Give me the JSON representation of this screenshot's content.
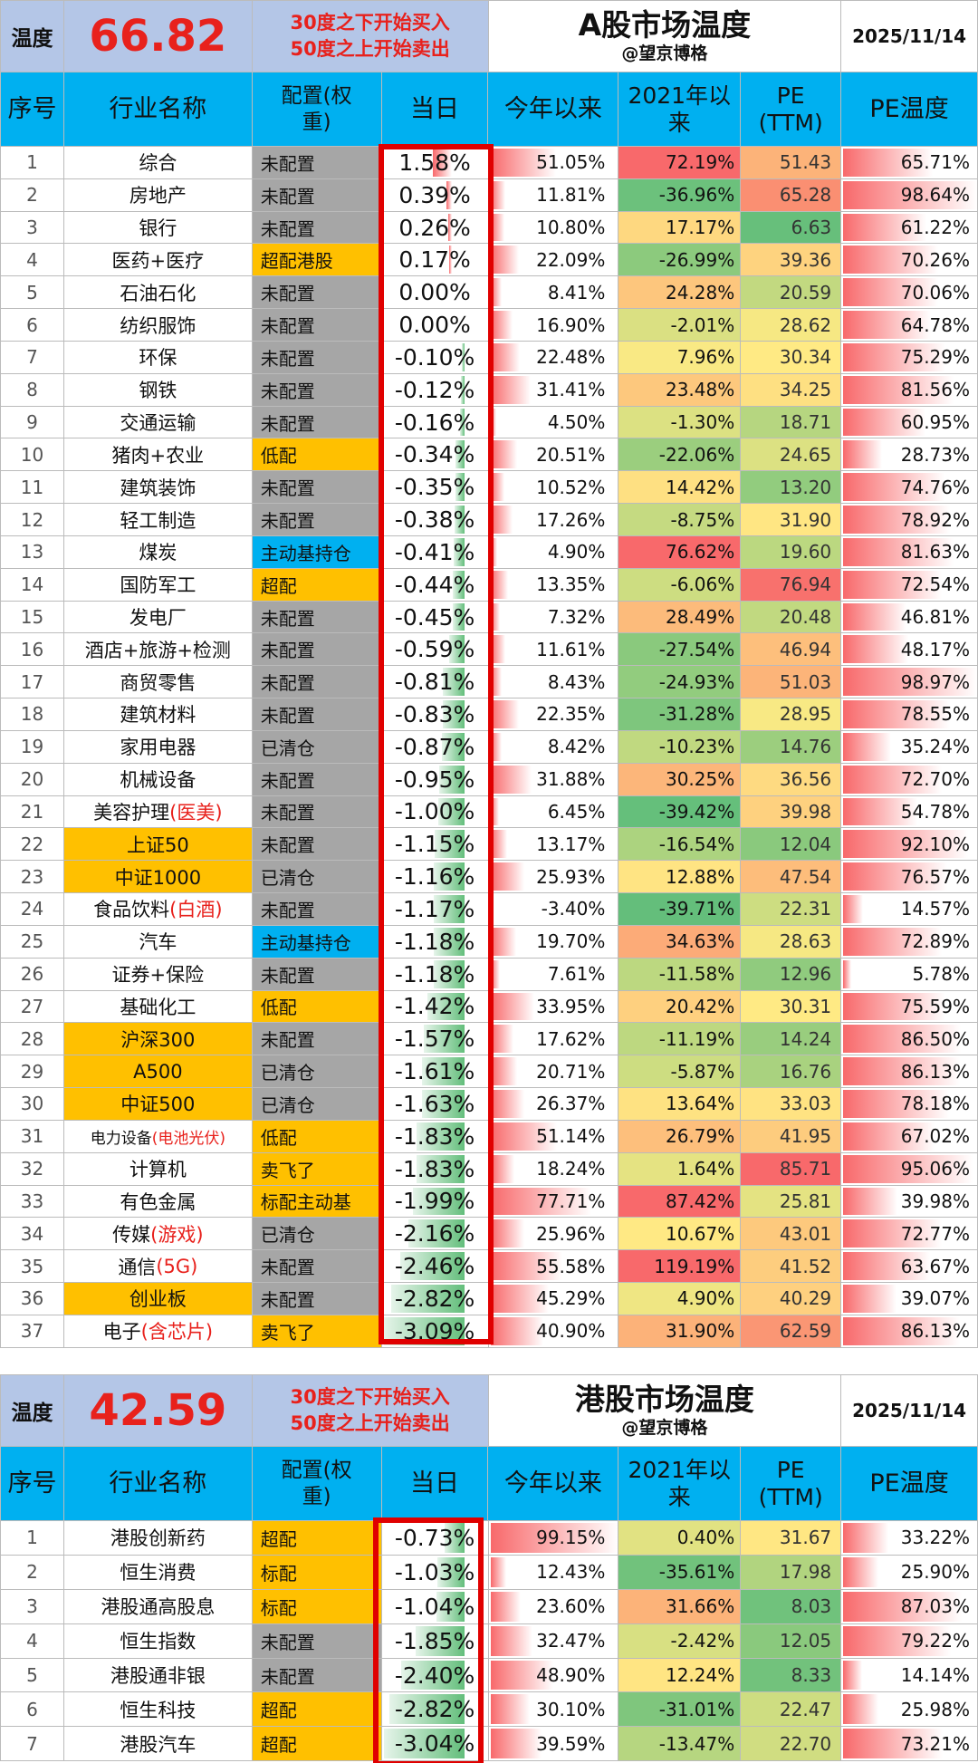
{
  "a_share": {
    "temp_label": "温度",
    "temp_value": "66.82",
    "rule_line1": "30度之下开始买入",
    "rule_line2": "50度之上开始卖出",
    "title": "A股市场温度",
    "author": "@望京博格",
    "date": "2025/11/14",
    "headers": {
      "no": "序号",
      "name": "行业名称",
      "alloc": "配置(权重)",
      "day": "当日",
      "ytd": "今年以来",
      "since": "2021年以来",
      "pe": "PE (TTM)",
      "pet": "PE温度"
    },
    "rows": [
      {
        "no": "1",
        "name": "综合",
        "alloc": "未配置",
        "day": "1.58%",
        "ytd": "51.05%",
        "since": "72.19%",
        "pe": "51.43",
        "pet": "65.71%"
      },
      {
        "no": "2",
        "name": "房地产",
        "alloc": "未配置",
        "day": "0.39%",
        "ytd": "11.81%",
        "since": "-36.96%",
        "pe": "65.28",
        "pet": "98.64%"
      },
      {
        "no": "3",
        "name": "银行",
        "alloc": "未配置",
        "day": "0.26%",
        "ytd": "10.80%",
        "since": "17.17%",
        "pe": "6.63",
        "pet": "61.22%"
      },
      {
        "no": "4",
        "name": "医药+医疗",
        "alloc": "超配港股",
        "day": "0.17%",
        "ytd": "22.09%",
        "since": "-26.99%",
        "pe": "39.36",
        "pet": "70.26%"
      },
      {
        "no": "5",
        "name": "石油石化",
        "alloc": "未配置",
        "day": "0.00%",
        "ytd": "8.41%",
        "since": "24.28%",
        "pe": "20.59",
        "pet": "70.06%"
      },
      {
        "no": "6",
        "name": "纺织服饰",
        "alloc": "未配置",
        "day": "0.00%",
        "ytd": "16.90%",
        "since": "-2.01%",
        "pe": "28.62",
        "pet": "64.78%"
      },
      {
        "no": "7",
        "name": "环保",
        "alloc": "未配置",
        "day": "-0.10%",
        "ytd": "22.48%",
        "since": "7.96%",
        "pe": "30.34",
        "pet": "75.29%"
      },
      {
        "no": "8",
        "name": "钢铁",
        "alloc": "未配置",
        "day": "-0.12%",
        "ytd": "31.41%",
        "since": "23.48%",
        "pe": "34.25",
        "pet": "81.56%"
      },
      {
        "no": "9",
        "name": "交通运输",
        "alloc": "未配置",
        "day": "-0.16%",
        "ytd": "4.50%",
        "since": "-1.30%",
        "pe": "18.71",
        "pet": "60.95%"
      },
      {
        "no": "10",
        "name": "猪肉+农业",
        "alloc": "低配",
        "day": "-0.34%",
        "ytd": "20.51%",
        "since": "-22.06%",
        "pe": "24.65",
        "pet": "28.73%"
      },
      {
        "no": "11",
        "name": "建筑装饰",
        "alloc": "未配置",
        "day": "-0.35%",
        "ytd": "10.52%",
        "since": "14.42%",
        "pe": "13.20",
        "pet": "74.76%"
      },
      {
        "no": "12",
        "name": "轻工制造",
        "alloc": "未配置",
        "day": "-0.38%",
        "ytd": "17.26%",
        "since": "-8.75%",
        "pe": "31.90",
        "pet": "78.92%"
      },
      {
        "no": "13",
        "name": "煤炭",
        "alloc": "主动基持仓",
        "day": "-0.41%",
        "ytd": "4.90%",
        "since": "76.62%",
        "pe": "19.60",
        "pet": "81.63%"
      },
      {
        "no": "14",
        "name": "国防军工",
        "alloc": "超配",
        "day": "-0.44%",
        "ytd": "13.35%",
        "since": "-6.06%",
        "pe": "76.94",
        "pet": "72.54%"
      },
      {
        "no": "15",
        "name": "发电厂",
        "alloc": "未配置",
        "day": "-0.45%",
        "ytd": "7.32%",
        "since": "28.49%",
        "pe": "20.48",
        "pet": "46.81%"
      },
      {
        "no": "16",
        "name": "酒店+旅游+检测",
        "alloc": "未配置",
        "day": "-0.59%",
        "ytd": "11.61%",
        "since": "-27.54%",
        "pe": "46.94",
        "pet": "48.17%"
      },
      {
        "no": "17",
        "name": "商贸零售",
        "alloc": "未配置",
        "day": "-0.81%",
        "ytd": "8.43%",
        "since": "-24.93%",
        "pe": "51.03",
        "pet": "98.97%"
      },
      {
        "no": "18",
        "name": "建筑材料",
        "alloc": "未配置",
        "day": "-0.83%",
        "ytd": "22.35%",
        "since": "-31.28%",
        "pe": "28.95",
        "pet": "78.55%"
      },
      {
        "no": "19",
        "name": "家用电器",
        "alloc": "已清仓",
        "day": "-0.87%",
        "ytd": "8.42%",
        "since": "-10.23%",
        "pe": "14.76",
        "pet": "35.24%"
      },
      {
        "no": "20",
        "name": "机械设备",
        "alloc": "未配置",
        "day": "-0.95%",
        "ytd": "31.88%",
        "since": "30.25%",
        "pe": "36.56",
        "pet": "72.70%"
      },
      {
        "no": "21",
        "name": "美容护理",
        "name_red": "(医美)",
        "alloc": "未配置",
        "day": "-1.00%",
        "ytd": "6.45%",
        "since": "-39.42%",
        "pe": "39.98",
        "pet": "54.78%"
      },
      {
        "no": "22",
        "name": "上证50",
        "alloc": "未配置",
        "day": "-1.15%",
        "ytd": "13.17%",
        "since": "-16.54%",
        "pe": "12.04",
        "pet": "92.10%"
      },
      {
        "no": "23",
        "name": "中证1000",
        "alloc": "已清仓",
        "day": "-1.16%",
        "ytd": "25.93%",
        "since": "12.88%",
        "pe": "47.54",
        "pet": "76.57%"
      },
      {
        "no": "24",
        "name": "食品饮料",
        "name_red": "(白酒)",
        "alloc": "未配置",
        "day": "-1.17%",
        "ytd": "-3.40%",
        "since": "-39.71%",
        "pe": "22.31",
        "pet": "14.57%"
      },
      {
        "no": "25",
        "name": "汽车",
        "alloc": "主动基持仓",
        "day": "-1.18%",
        "ytd": "19.70%",
        "since": "34.63%",
        "pe": "28.63",
        "pet": "72.89%"
      },
      {
        "no": "26",
        "name": "证券+保险",
        "alloc": "未配置",
        "day": "-1.18%",
        "ytd": "7.61%",
        "since": "-11.58%",
        "pe": "12.96",
        "pet": "5.78%"
      },
      {
        "no": "27",
        "name": "基础化工",
        "alloc": "低配",
        "day": "-1.42%",
        "ytd": "33.95%",
        "since": "20.42%",
        "pe": "30.31",
        "pet": "75.59%"
      },
      {
        "no": "28",
        "name": "沪深300",
        "alloc": "未配置",
        "day": "-1.57%",
        "ytd": "17.62%",
        "since": "-11.19%",
        "pe": "14.24",
        "pet": "86.50%"
      },
      {
        "no": "29",
        "name": "A500",
        "alloc": "已清仓",
        "day": "-1.61%",
        "ytd": "20.71%",
        "since": "-5.87%",
        "pe": "16.76",
        "pet": "86.13%"
      },
      {
        "no": "30",
        "name": "中证500",
        "alloc": "已清仓",
        "day": "-1.63%",
        "ytd": "26.37%",
        "since": "13.64%",
        "pe": "33.03",
        "pet": "78.18%"
      },
      {
        "no": "31",
        "name": "电力设备",
        "name_red": "(电池光伏)",
        "alloc": "低配",
        "day": "-1.83%",
        "ytd": "51.14%",
        "since": "26.79%",
        "pe": "41.95",
        "pet": "67.02%"
      },
      {
        "no": "32",
        "name": "计算机",
        "alloc": "卖飞了",
        "day": "-1.83%",
        "ytd": "18.24%",
        "since": "1.64%",
        "pe": "85.71",
        "pet": "95.06%"
      },
      {
        "no": "33",
        "name": "有色金属",
        "alloc": "标配主动基",
        "day": "-1.99%",
        "ytd": "77.71%",
        "since": "87.42%",
        "pe": "25.81",
        "pet": "39.98%"
      },
      {
        "no": "34",
        "name": "传媒",
        "name_red": "(游戏)",
        "alloc": "已清仓",
        "day": "-2.16%",
        "ytd": "25.96%",
        "since": "10.67%",
        "pe": "43.01",
        "pet": "72.77%"
      },
      {
        "no": "35",
        "name": "通信",
        "name_red": "(5G)",
        "alloc": "未配置",
        "day": "-2.46%",
        "ytd": "55.58%",
        "since": "119.19%",
        "pe": "41.52",
        "pet": "63.67%"
      },
      {
        "no": "36",
        "name": "创业板",
        "alloc": "未配置",
        "day": "-2.82%",
        "ytd": "45.29%",
        "since": "4.90%",
        "pe": "40.29",
        "pet": "39.07%"
      },
      {
        "no": "37",
        "name": "电子",
        "name_red": "(含芯片)",
        "alloc": "卖飞了",
        "day": "-3.09%",
        "ytd": "40.90%",
        "since": "31.90%",
        "pe": "62.59",
        "pet": "86.13%"
      }
    ]
  },
  "hk_share": {
    "temp_label": "温度",
    "temp_value": "42.59",
    "rule_line1": "30度之下开始买入",
    "rule_line2": "50度之上开始卖出",
    "title": "港股市场温度",
    "author": "@望京博格",
    "date": "2025/11/14",
    "headers": {
      "no": "序号",
      "name": "行业名称",
      "alloc": "配置(权重)",
      "day": "当日",
      "ytd": "今年以来",
      "since": "2021年以来",
      "pe": "PE (TTM)",
      "pet": "PE温度"
    },
    "rows": [
      {
        "no": "1",
        "name": "港股创新药",
        "alloc": "超配",
        "day": "-0.73%",
        "ytd": "99.15%",
        "since": "0.40%",
        "pe": "31.67",
        "pet": "33.22%"
      },
      {
        "no": "2",
        "name": "恒生消费",
        "alloc": "标配",
        "day": "-1.03%",
        "ytd": "12.43%",
        "since": "-35.61%",
        "pe": "17.98",
        "pet": "25.90%"
      },
      {
        "no": "3",
        "name": "港股通高股息",
        "alloc": "标配",
        "day": "-1.04%",
        "ytd": "23.60%",
        "since": "31.66%",
        "pe": "8.03",
        "pet": "87.03%"
      },
      {
        "no": "4",
        "name": "恒生指数",
        "alloc": "未配置",
        "day": "-1.85%",
        "ytd": "32.47%",
        "since": "-2.42%",
        "pe": "12.05",
        "pet": "79.22%"
      },
      {
        "no": "5",
        "name": "港股通非银",
        "alloc": "未配置",
        "day": "-2.40%",
        "ytd": "48.90%",
        "since": "12.24%",
        "pe": "8.33",
        "pet": "14.14%"
      },
      {
        "no": "6",
        "name": "恒生科技",
        "alloc": "超配",
        "day": "-2.82%",
        "ytd": "30.10%",
        "since": "-31.01%",
        "pe": "22.47",
        "pet": "25.98%"
      },
      {
        "no": "7",
        "name": "港股汽车",
        "alloc": "超配",
        "day": "-3.04%",
        "ytd": "39.59%",
        "since": "-13.47%",
        "pe": "22.70",
        "pet": "73.21%"
      }
    ]
  },
  "colors": {
    "header_blue": "#00b0f0",
    "temp_blue": "#b4c6e7",
    "red": "#e8211c",
    "gold": "#ffc000",
    "gray": "#a6a6a6"
  }
}
